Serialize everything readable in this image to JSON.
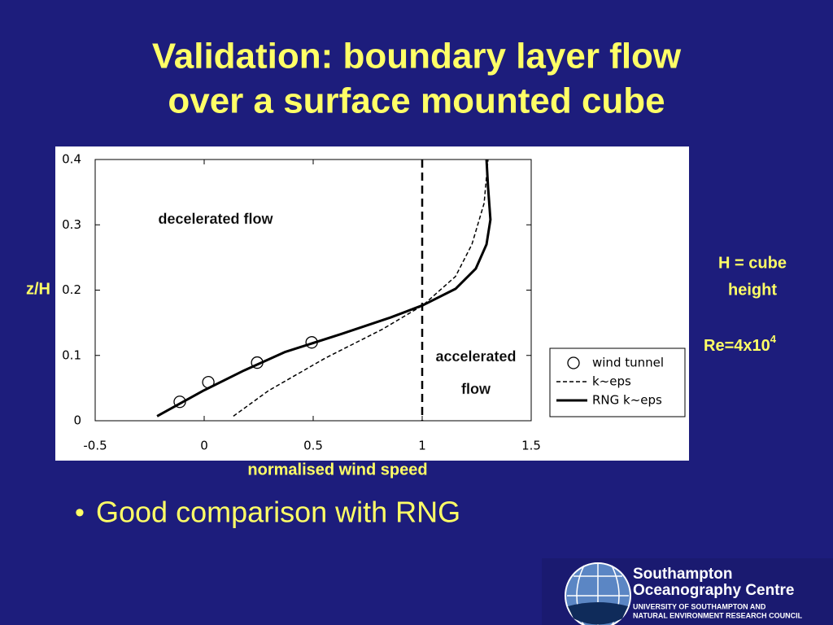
{
  "slide": {
    "title": [
      "Validation: boundary layer flow",
      "over a surface mounted cube"
    ],
    "bullets": [
      "Good comparison with RNG"
    ],
    "side_notes": {
      "definition": [
        "H = cube",
        "height"
      ],
      "reynolds": {
        "text": "Re=4x10",
        "superscript": "4"
      }
    },
    "logo": {
      "name": [
        "Southampton",
        "Oceanography Centre"
      ],
      "subtitle": [
        "UNIVERSITY OF SOUTHAMPTON AND",
        "NATURAL ENVIRONMENT RESEARCH COUNCIL"
      ]
    }
  },
  "chart_data": {
    "type": "line",
    "x_label": "normalised wind speed",
    "y_label": "z/H",
    "xlim": [
      -0.5,
      1.5
    ],
    "xticks": [
      -0.5,
      0,
      0.5,
      1,
      1.5
    ],
    "ylim": [
      0,
      0.4
    ],
    "yticks": [
      0,
      0.1,
      0.2,
      0.3,
      0.4
    ],
    "reference_x": 1,
    "annotations": [
      [
        "decelerated flow"
      ],
      [
        "accelerated",
        "flow"
      ]
    ],
    "legend": "lower right",
    "series": [
      {
        "name": "wind tunnel",
        "color": "#000000",
        "style": "markers",
        "x": [
          -0.112,
          0.019,
          0.243,
          0.493
        ],
        "values": [
          0.029,
          0.059,
          0.089,
          0.12
        ]
      },
      {
        "name": "k~eps",
        "color": "#000000",
        "style": "dashed",
        "x": [
          0.134,
          0.295,
          0.556,
          0.817,
          1.004,
          1.153,
          1.228,
          1.284,
          1.302
        ],
        "values": [
          0.007,
          0.046,
          0.096,
          0.14,
          0.177,
          0.221,
          0.27,
          0.333,
          0.4
        ]
      },
      {
        "name": "RNG k~eps",
        "color": "#000000",
        "style": "solid",
        "x": [
          -0.216,
          -0.004,
          0.183,
          0.369,
          0.63,
          0.854,
          1.004,
          1.153,
          1.246,
          1.295,
          1.313,
          1.302,
          1.295
        ],
        "values": [
          0.007,
          0.046,
          0.077,
          0.105,
          0.133,
          0.158,
          0.177,
          0.202,
          0.233,
          0.27,
          0.308,
          0.358,
          0.4
        ]
      }
    ]
  }
}
